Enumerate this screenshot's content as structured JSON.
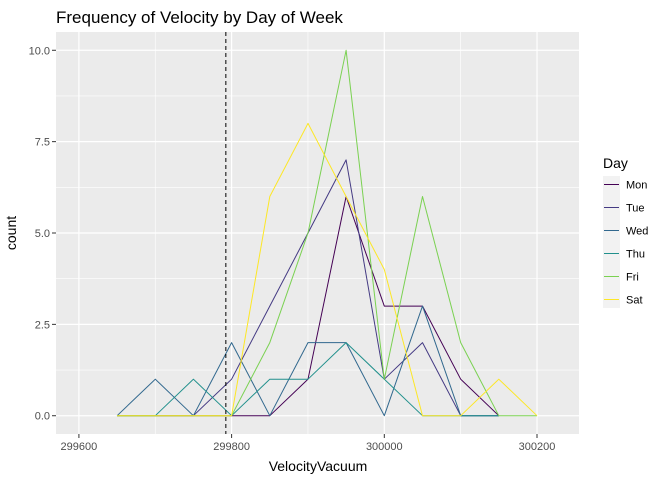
{
  "chart_data": {
    "type": "line",
    "title": "Frequency of Velocity by Day of Week",
    "xlabel": "VelocityVacuum",
    "ylabel": "count",
    "xlim": [
      299570,
      300255
    ],
    "ylim": [
      -0.5,
      10.5
    ],
    "xticks": [
      299600,
      299800,
      300000,
      300200
    ],
    "xtick_labels": [
      "299600",
      "299800",
      "300000",
      "300200"
    ],
    "yticks": [
      0,
      2.5,
      5,
      7.5,
      10
    ],
    "ytick_labels": [
      "0.0",
      "2.5",
      "5.0",
      "7.5",
      "10.0"
    ],
    "grid": true,
    "panel_background": "#ebebeb",
    "reference_line": {
      "x": 299792.458,
      "style": "dashed",
      "color": "#000000"
    },
    "x": [
      299650,
      299700,
      299750,
      299800,
      299850,
      299900,
      299950,
      300000,
      300050,
      300100,
      300150,
      300200
    ],
    "legend": {
      "title": "Day",
      "position": "right"
    },
    "series": [
      {
        "name": "Mon",
        "color": "#440154",
        "values": [
          0,
          0,
          0,
          0,
          0,
          1,
          6,
          3,
          3,
          1,
          0,
          null
        ]
      },
      {
        "name": "Tue",
        "color": "#443a83",
        "values": [
          0,
          0,
          0,
          1,
          3,
          5,
          7,
          1,
          2,
          0,
          0,
          null
        ]
      },
      {
        "name": "Wed",
        "color": "#31688e",
        "values": [
          0,
          1,
          0,
          2,
          0,
          2,
          2,
          0,
          3,
          0,
          0,
          null
        ]
      },
      {
        "name": "Thu",
        "color": "#21908c",
        "values": [
          0,
          0,
          1,
          0,
          1,
          1,
          2,
          1,
          0,
          0,
          0,
          null
        ]
      },
      {
        "name": "Fri",
        "color": "#7ad151",
        "values": [
          0,
          0,
          0,
          0,
          2,
          5,
          10,
          1,
          6,
          2,
          0,
          0
        ]
      },
      {
        "name": "Sat",
        "color": "#fde725",
        "values": [
          0,
          0,
          0,
          0,
          6,
          8,
          6,
          4,
          0,
          0,
          1,
          0
        ]
      }
    ]
  }
}
